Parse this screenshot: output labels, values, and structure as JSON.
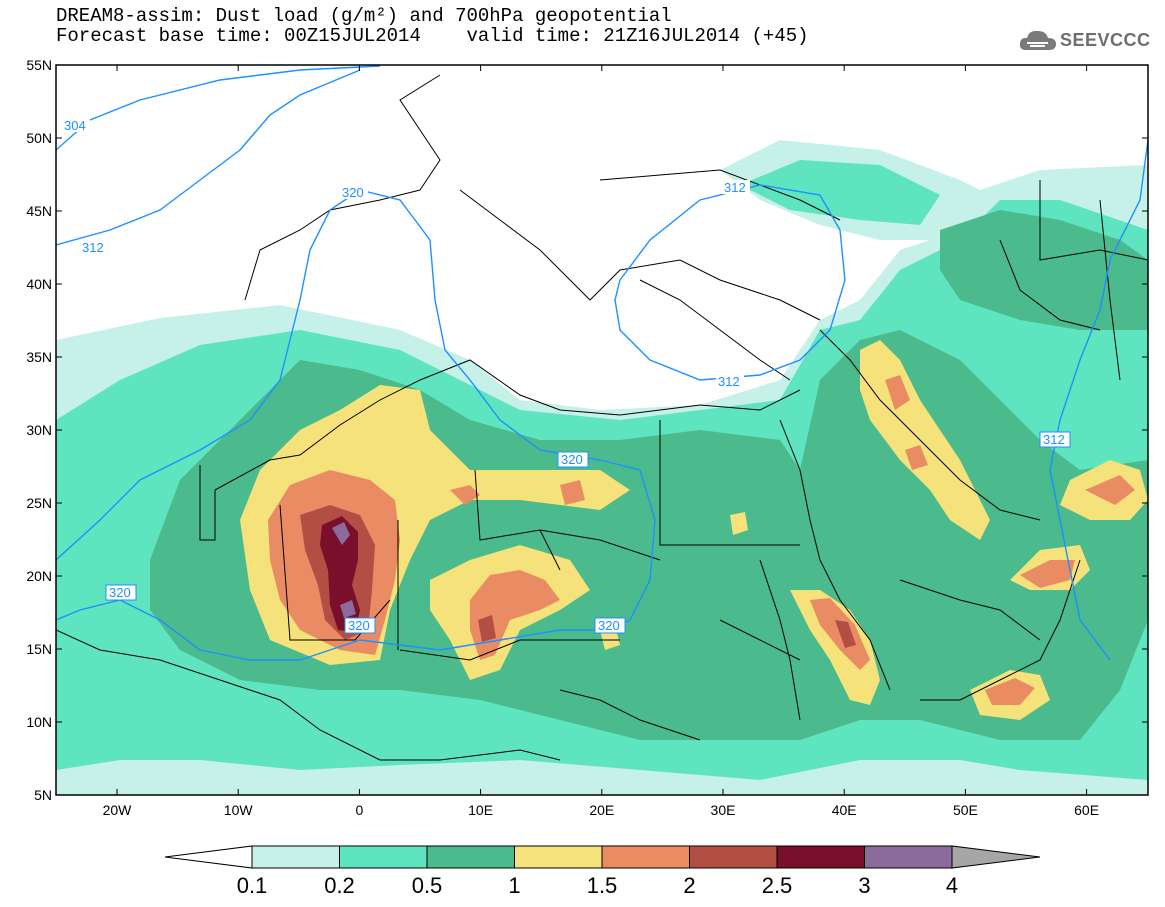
{
  "title": {
    "line1": "DREAM8-assim: Dust load (g/m²) and 700hPa geopotential",
    "line2": "Forecast base time: 00Z15JUL2014    valid time: 21Z16JUL2014 (+45)"
  },
  "logo": {
    "text": "SEEVCCC",
    "icon": "cloud-icon"
  },
  "axes": {
    "lat_labels": [
      "55N",
      "50N",
      "45N",
      "40N",
      "35N",
      "30N",
      "25N",
      "20N",
      "15N",
      "10N",
      "5N"
    ],
    "lon_labels": [
      "20W",
      "10W",
      "0",
      "10E",
      "20E",
      "30E",
      "40E",
      "50E",
      "60E"
    ]
  },
  "contours": {
    "unit": "700hPa geopotential",
    "labels": [
      "304",
      "312",
      "320",
      "312",
      "312",
      "312",
      "320",
      "320",
      "320",
      "320"
    ]
  },
  "colorbar": {
    "labels": [
      "0.1",
      "0.2",
      "0.5",
      "1",
      "1.5",
      "2",
      "2.5",
      "3",
      "4"
    ],
    "colors": [
      "#c6f1e8",
      "#5ee4be",
      "#4bba8c",
      "#f5e27a",
      "#e98b63",
      "#b34e45",
      "#7a0f2c",
      "#8b6a9c"
    ],
    "under_color": "#ffffff",
    "over_color": "#a6a6a6"
  },
  "palette": {
    "contour": "#1e90ff",
    "border": "#000000"
  }
}
